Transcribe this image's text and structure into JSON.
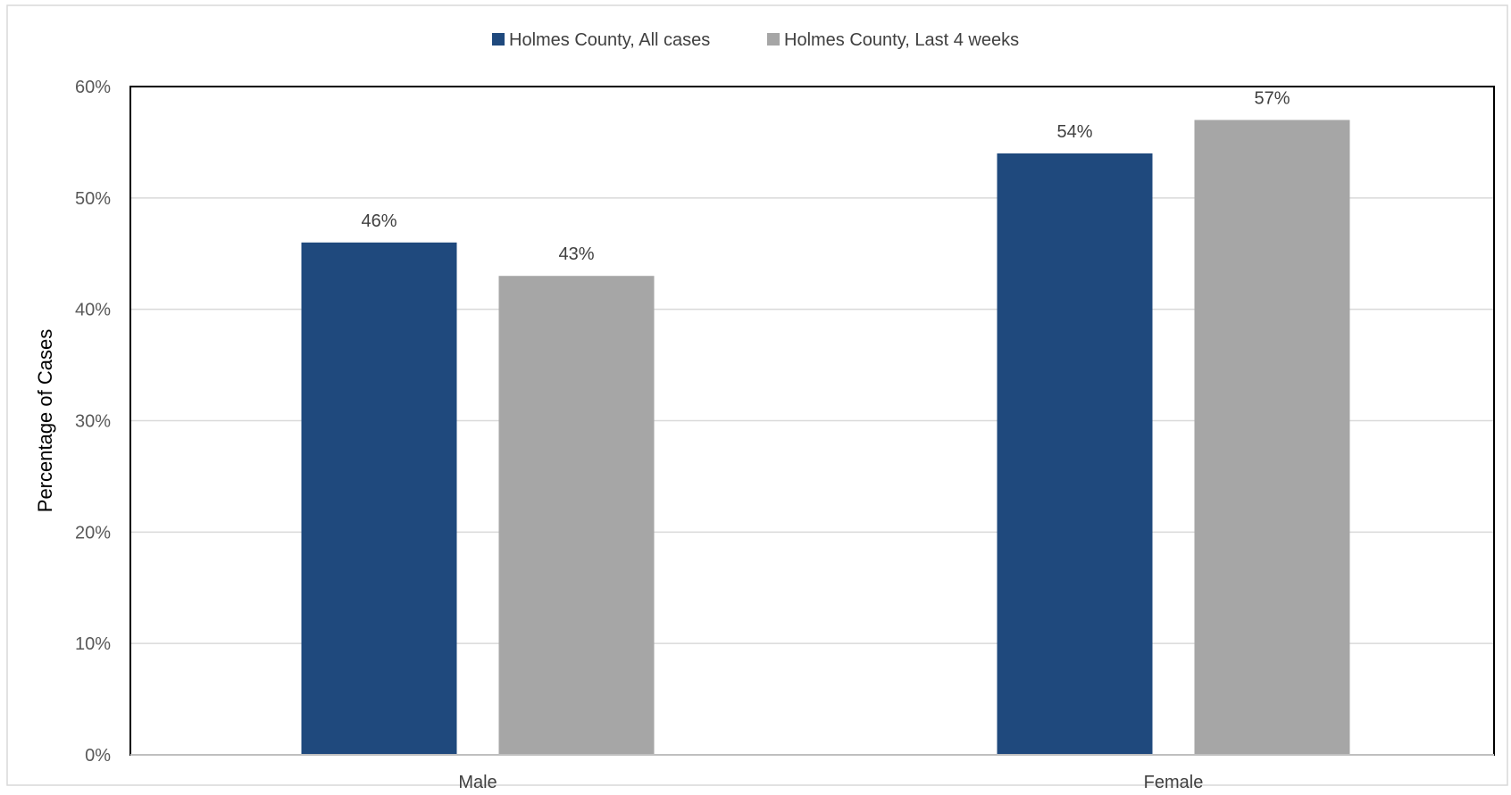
{
  "chart_data": {
    "type": "bar",
    "categories": [
      "Male",
      "Female"
    ],
    "series": [
      {
        "name": "Holmes County, All cases",
        "values": [
          46,
          54
        ],
        "labels": [
          "46%",
          "54%"
        ],
        "color": "#1f497d"
      },
      {
        "name": "Holmes County, Last 4 weeks",
        "values": [
          43,
          57
        ],
        "labels": [
          "43%",
          "57%"
        ],
        "color": "#a6a6a6"
      }
    ],
    "ylabel": "Percentage of Cases",
    "xlabel": "",
    "ylim": [
      0,
      60
    ],
    "yticks": [
      0,
      10,
      20,
      30,
      40,
      50,
      60
    ],
    "ytick_labels": [
      "0%",
      "10%",
      "20%",
      "30%",
      "40%",
      "50%",
      "60%"
    ],
    "grid": true,
    "legend": "top-center"
  }
}
